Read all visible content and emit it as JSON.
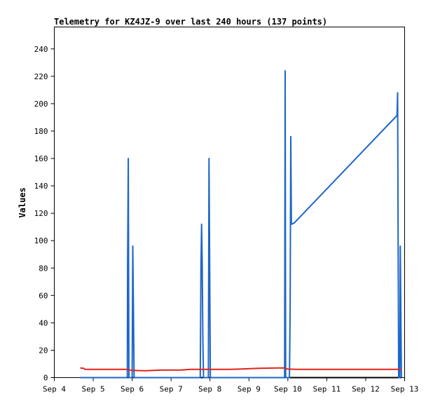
{
  "chart_data": {
    "type": "line",
    "title": "Telemetry for KZ4JZ-9 over last 240 hours (137 points)",
    "ylabel": "Values",
    "xlabel": "",
    "grid": false,
    "xlim": [
      "2024-09-04T00:00",
      "2024-09-13T00:00"
    ],
    "ylim": [
      0,
      256
    ],
    "yticks": [
      0,
      20,
      40,
      60,
      80,
      100,
      120,
      140,
      160,
      180,
      200,
      220,
      240
    ],
    "xticks": [
      {
        "label": "Sep 4",
        "x": "2024-09-04T00:00"
      },
      {
        "label": "Sep 5",
        "x": "2024-09-05T00:00"
      },
      {
        "label": "Sep 6",
        "x": "2024-09-06T00:00"
      },
      {
        "label": "Sep 7",
        "x": "2024-09-07T00:00"
      },
      {
        "label": "Sep 8",
        "x": "2024-09-08T00:00"
      },
      {
        "label": "Sep 9",
        "x": "2024-09-09T00:00"
      },
      {
        "label": "Sep 10",
        "x": "2024-09-10T00:00"
      },
      {
        "label": "Sep 11",
        "x": "2024-09-11T00:00"
      },
      {
        "label": "Sep 12",
        "x": "2024-09-12T00:00"
      },
      {
        "label": "Sep 13",
        "x": "2024-09-13T00:00"
      }
    ],
    "series": [
      {
        "color": "#000000",
        "points": [
          [
            "2024-09-04T16:00",
            0
          ],
          [
            "2024-09-12T22:00",
            0
          ]
        ]
      },
      {
        "color": "#1e66c8",
        "points": [
          [
            "2024-09-04T16:00",
            0
          ],
          [
            "2024-09-05T21:00",
            0
          ],
          [
            "2024-09-05T21:12",
            80
          ],
          [
            "2024-09-05T21:36",
            160
          ],
          [
            "2024-09-05T22:00",
            0
          ],
          [
            "2024-09-06T00:00",
            0
          ],
          [
            "2024-09-06T00:24",
            96
          ],
          [
            "2024-09-06T00:48",
            48
          ],
          [
            "2024-09-06T01:12",
            0
          ],
          [
            "2024-09-07T18:00",
            0
          ],
          [
            "2024-09-07T18:24",
            80
          ],
          [
            "2024-09-07T18:48",
            112
          ],
          [
            "2024-09-07T19:12",
            84
          ],
          [
            "2024-09-07T19:36",
            28
          ],
          [
            "2024-09-07T20:00",
            0
          ],
          [
            "2024-09-07T23:00",
            0
          ],
          [
            "2024-09-07T23:24",
            160
          ],
          [
            "2024-09-07T23:48",
            80
          ],
          [
            "2024-09-08T00:12",
            0
          ],
          [
            "2024-09-09T22:00",
            0
          ],
          [
            "2024-09-09T22:20",
            224
          ],
          [
            "2024-09-09T22:40",
            0
          ],
          [
            "2024-09-10T01:00",
            0
          ],
          [
            "2024-09-10T01:24",
            48
          ],
          [
            "2024-09-10T01:48",
            176
          ],
          [
            "2024-09-10T02:12",
            112
          ],
          [
            "2024-09-10T04:00",
            113
          ],
          [
            "2024-09-12T19:00",
            191
          ],
          [
            "2024-09-12T19:20",
            192
          ],
          [
            "2024-09-12T19:40",
            208
          ],
          [
            "2024-09-12T20:00",
            104
          ],
          [
            "2024-09-12T20:20",
            0
          ],
          [
            "2024-09-12T21:00",
            0
          ],
          [
            "2024-09-12T21:20",
            96
          ],
          [
            "2024-09-12T21:40",
            48
          ],
          [
            "2024-09-12T22:00",
            0
          ]
        ]
      },
      {
        "color": "#e0241c",
        "points": [
          [
            "2024-09-04T16:00",
            7
          ],
          [
            "2024-09-04T18:00",
            6.8
          ],
          [
            "2024-09-04T19:00",
            6
          ],
          [
            "2024-09-05T21:00",
            6
          ],
          [
            "2024-09-06T00:00",
            5.2
          ],
          [
            "2024-09-06T08:00",
            5
          ],
          [
            "2024-09-06T18:00",
            5.5
          ],
          [
            "2024-09-07T06:00",
            5.5
          ],
          [
            "2024-09-07T12:00",
            6
          ],
          [
            "2024-09-08T12:00",
            6
          ],
          [
            "2024-09-08T18:00",
            6.2
          ],
          [
            "2024-09-09T06:00",
            6.8
          ],
          [
            "2024-09-09T18:00",
            7
          ],
          [
            "2024-09-09T22:00",
            7
          ],
          [
            "2024-09-10T00:00",
            6.2
          ],
          [
            "2024-09-10T06:00",
            6
          ],
          [
            "2024-09-12T22:00",
            6
          ]
        ]
      }
    ]
  }
}
